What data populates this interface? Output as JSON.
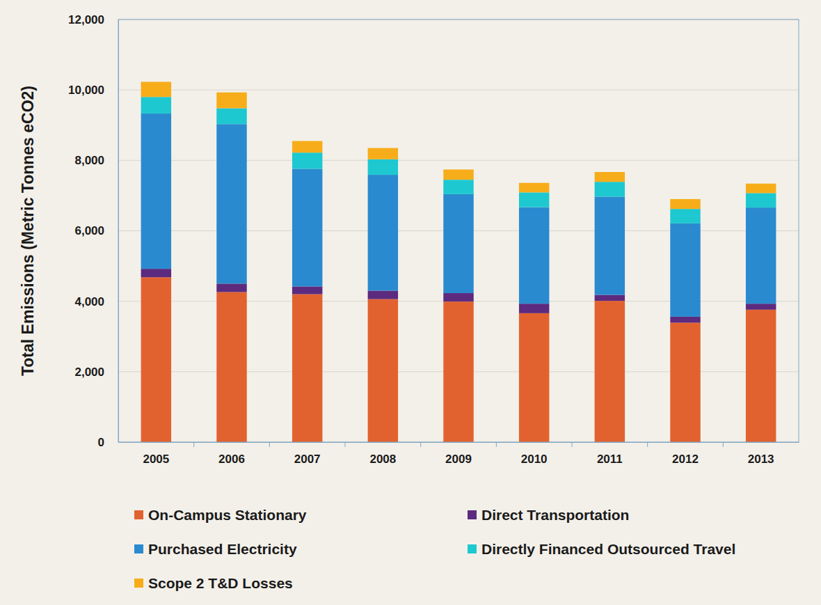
{
  "chart_data": {
    "type": "bar",
    "stacked": true,
    "grid": true,
    "legend": "bottom",
    "y_label": "Total Emissions (Metric Tonnes eCO2)",
    "categories": [
      "2005",
      "2006",
      "2007",
      "2008",
      "2009",
      "2010",
      "2011",
      "2012",
      "2013"
    ],
    "ylim": [
      0,
      12000
    ],
    "yticks": [
      0,
      {
        "value": 2000,
        "label": "2,000"
      },
      {
        "value": 4000,
        "label": "4,000"
      },
      {
        "value": 6000,
        "label": "6,000"
      },
      {
        "value": 8000,
        "label": "8,000"
      },
      {
        "value": 10000,
        "label": "10,000"
      },
      {
        "value": 12000,
        "label": "12,000"
      }
    ],
    "series": [
      {
        "name": "On-Campus Stationary",
        "color": "#e2622f",
        "values": [
          4680,
          4260,
          4200,
          4060,
          3990,
          3660,
          4010,
          3390,
          3760
        ]
      },
      {
        "name": "Direct Transportation",
        "color": "#5c2a7e",
        "values": [
          240,
          240,
          220,
          240,
          240,
          270,
          170,
          170,
          170
        ]
      },
      {
        "name": "Purchased Electricity",
        "color": "#2a8ad0",
        "values": [
          4410,
          4530,
          3340,
          3290,
          2810,
          2740,
          2790,
          2650,
          2730
        ]
      },
      {
        "name": "Directly Financed Outsourced Travel",
        "color": "#1ec8d0",
        "values": [
          470,
          450,
          460,
          440,
          410,
          420,
          420,
          410,
          410
        ]
      },
      {
        "name": "Scope 2 T&D Losses",
        "color": "#f7ad1a",
        "values": [
          430,
          450,
          330,
          320,
          290,
          270,
          280,
          280,
          270
        ]
      }
    ]
  }
}
